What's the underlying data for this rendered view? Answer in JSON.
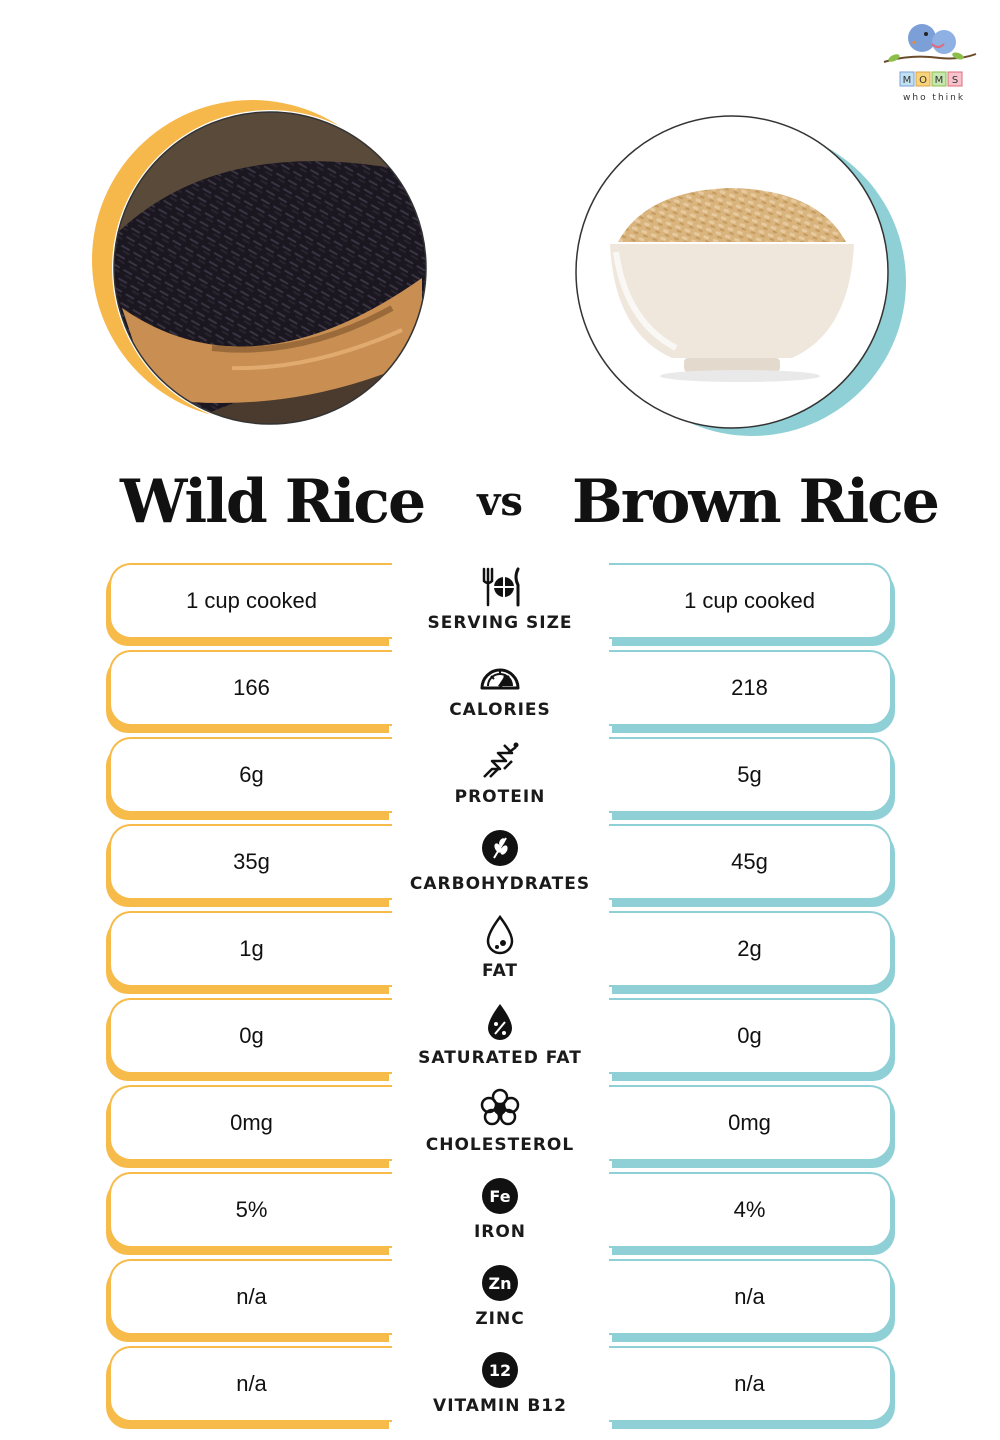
{
  "brand": {
    "logo_text": "MOMS",
    "logo_sub": "who think"
  },
  "left": {
    "name": "Wild Rice",
    "accent": "#f7bb4a"
  },
  "vs": "vs",
  "right": {
    "name": "Brown Rice",
    "accent": "#8fd0d6"
  },
  "rows": [
    {
      "label": "SERVING SIZE",
      "icon": "plate-cutlery-icon",
      "left": "1 cup cooked",
      "right": "1 cup cooked"
    },
    {
      "label": "CALORIES",
      "icon": "gauge-icon",
      "left": "166",
      "right": "218"
    },
    {
      "label": "PROTEIN",
      "icon": "protein-strand-icon",
      "left": "6g",
      "right": "5g"
    },
    {
      "label": "CARBOHYDRATES",
      "icon": "grain-icon",
      "left": "35g",
      "right": "45g"
    },
    {
      "label": "FAT",
      "icon": "droplet-icon",
      "left": "1g",
      "right": "2g"
    },
    {
      "label": "SATURATED FAT",
      "icon": "droplet-percent-icon",
      "left": "0g",
      "right": "0g"
    },
    {
      "label": "CHOLESTEROL",
      "icon": "cholesterol-icon",
      "left": "0mg",
      "right": "0mg"
    },
    {
      "label": "IRON",
      "icon": "fe-badge-icon",
      "icon_text": "Fe",
      "left": "5%",
      "right": "4%"
    },
    {
      "label": "ZINC",
      "icon": "zn-badge-icon",
      "icon_text": "Zn",
      "left": "n/a",
      "right": "n/a"
    },
    {
      "label": "VITAMIN B12",
      "icon": "b12-badge-icon",
      "icon_text": "12",
      "left": "n/a",
      "right": "n/a"
    }
  ]
}
